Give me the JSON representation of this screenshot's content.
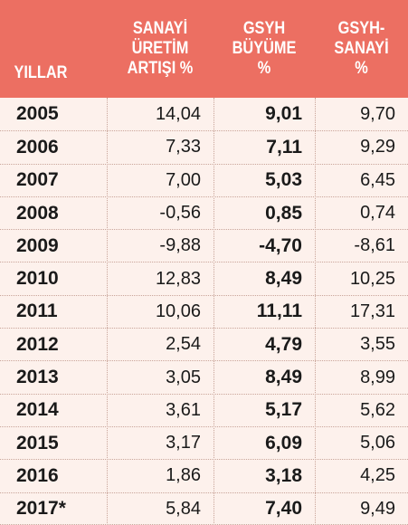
{
  "table": {
    "headers": {
      "years": [
        "YILLAR"
      ],
      "industry": [
        "SANAYİ",
        "ÜRETİM",
        "ARTIŞI %"
      ],
      "gdp": [
        "GSYH",
        "BÜYÜME",
        "%"
      ],
      "diff": [
        "GSYH-",
        "SANAYİ",
        "%"
      ]
    },
    "rows": [
      {
        "year": "2005",
        "industry": "14,04",
        "gdp": "9,01",
        "diff": "9,70"
      },
      {
        "year": "2006",
        "industry": "7,33",
        "gdp": "7,11",
        "diff": "9,29"
      },
      {
        "year": "2007",
        "industry": "7,00",
        "gdp": "5,03",
        "diff": "6,45"
      },
      {
        "year": "2008",
        "industry": "-0,56",
        "gdp": "0,85",
        "diff": "0,74"
      },
      {
        "year": "2009",
        "industry": "-9,88",
        "gdp": "-4,70",
        "diff": "-8,61"
      },
      {
        "year": "2010",
        "industry": "12,83",
        "gdp": "8,49",
        "diff": "10,25"
      },
      {
        "year": "2011",
        "industry": "10,06",
        "gdp": "11,11",
        "diff": "17,31"
      },
      {
        "year": "2012",
        "industry": "2,54",
        "gdp": "4,79",
        "diff": "3,55"
      },
      {
        "year": "2013",
        "industry": "3,05",
        "gdp": "8,49",
        "diff": "8,99"
      },
      {
        "year": "2014",
        "industry": "3,61",
        "gdp": "5,17",
        "diff": "5,62"
      },
      {
        "year": "2015",
        "industry": "3,17",
        "gdp": "6,09",
        "diff": "5,06"
      },
      {
        "year": "2016",
        "industry": "1,86",
        "gdp": "3,18",
        "diff": "4,25"
      },
      {
        "year": "2017*",
        "industry": "5,84",
        "gdp": "7,40",
        "diff": "9,49"
      }
    ]
  },
  "colors": {
    "header_bg": "#ec6f62",
    "body_bg": "#fdf1ec",
    "header_text": "#ffffff"
  }
}
